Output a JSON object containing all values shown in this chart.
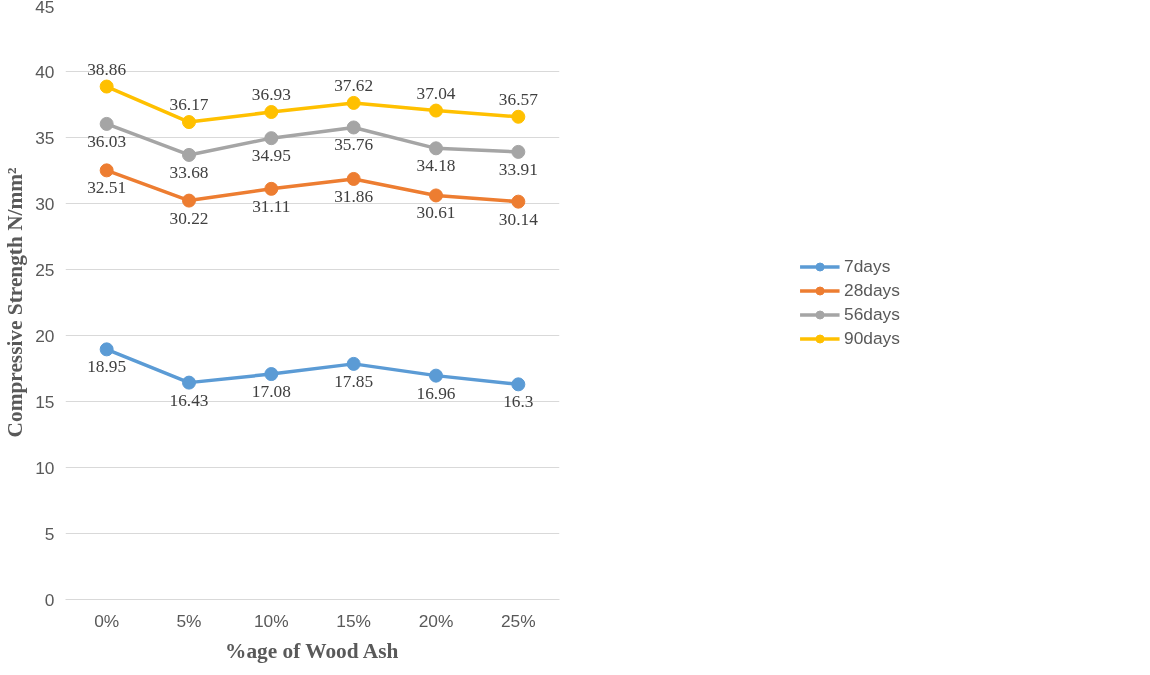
{
  "chart_data": {
    "type": "line",
    "xlabel": "%age of Wood Ash",
    "ylabel": "Compressive Strength N/mm²",
    "categories": [
      "0%",
      "5%",
      "10%",
      "15%",
      "20%",
      "25%"
    ],
    "series": [
      {
        "name": "7days",
        "color": "#5b9bd5",
        "values": [
          18.95,
          16.43,
          17.08,
          17.85,
          16.96,
          16.3
        ]
      },
      {
        "name": "28days",
        "color": "#ed7d31",
        "values": [
          32.51,
          30.22,
          31.11,
          31.86,
          30.61,
          30.14
        ]
      },
      {
        "name": "56days",
        "color": "#a5a5a5",
        "values": [
          36.03,
          33.68,
          34.95,
          35.76,
          34.18,
          33.91
        ]
      },
      {
        "name": "90days",
        "color": "#ffc000",
        "values": [
          38.86,
          36.17,
          36.93,
          37.62,
          37.04,
          36.57
        ]
      }
    ],
    "ylim": [
      0,
      45
    ],
    "yticks": [
      0,
      5,
      10,
      15,
      20,
      25,
      30,
      35,
      40,
      45
    ],
    "grid": "y",
    "legend": "right",
    "marker": "circle",
    "line_style": "solid",
    "data_labels": true
  }
}
